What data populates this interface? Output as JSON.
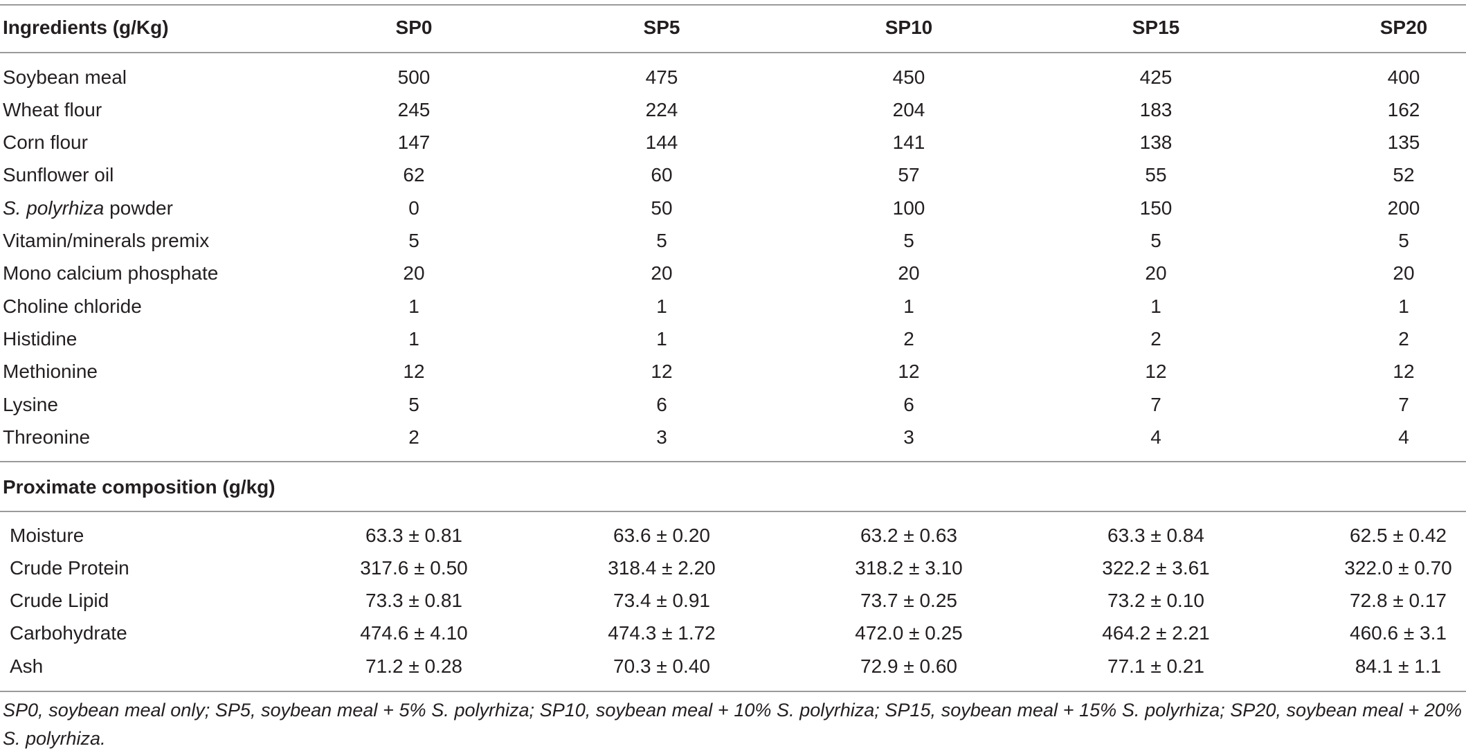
{
  "header": {
    "col0": "Ingredients (g/Kg)",
    "cols": [
      "SP0",
      "SP5",
      "SP10",
      "SP15",
      "SP20"
    ]
  },
  "ingredients": [
    {
      "name": "Soybean meal",
      "values": [
        "500",
        "475",
        "450",
        "425",
        "400"
      ]
    },
    {
      "name": "Wheat flour",
      "values": [
        "245",
        "224",
        "204",
        "183",
        "162"
      ]
    },
    {
      "name": "Corn flour",
      "values": [
        "147",
        "144",
        "141",
        "138",
        "135"
      ]
    },
    {
      "name": "Sunflower oil",
      "values": [
        "62",
        "60",
        "57",
        "55",
        "52"
      ]
    },
    {
      "name_italic": "S. polyrhiza",
      "name_rest": " powder",
      "values": [
        "0",
        "50",
        "100",
        "150",
        "200"
      ]
    },
    {
      "name": "Vitamin/minerals premix",
      "values": [
        "5",
        "5",
        "5",
        "5",
        "5"
      ]
    },
    {
      "name": "Mono calcium phosphate",
      "values": [
        "20",
        "20",
        "20",
        "20",
        "20"
      ]
    },
    {
      "name": "Choline chloride",
      "values": [
        "1",
        "1",
        "1",
        "1",
        "1"
      ]
    },
    {
      "name": "Histidine",
      "values": [
        "1",
        "1",
        "2",
        "2",
        "2"
      ]
    },
    {
      "name": "Methionine",
      "values": [
        "12",
        "12",
        "12",
        "12",
        "12"
      ]
    },
    {
      "name": "Lysine",
      "values": [
        "5",
        "6",
        "6",
        "7",
        "7"
      ]
    },
    {
      "name": "Threonine",
      "values": [
        "2",
        "3",
        "3",
        "4",
        "4"
      ]
    }
  ],
  "proximate": {
    "title": "Proximate composition (g/kg)",
    "rows": [
      {
        "name": "Moisture",
        "values": [
          "63.3 ± 0.81",
          "63.6 ± 0.20",
          "63.2 ± 0.63",
          "63.3 ± 0.84",
          "62.5 ± 0.42"
        ]
      },
      {
        "name": "Crude Protein",
        "values": [
          "317.6 ± 0.50",
          "318.4 ± 2.20",
          "318.2 ± 3.10",
          "322.2 ± 3.61",
          "322.0 ± 0.70"
        ]
      },
      {
        "name": "Crude Lipid",
        "values": [
          "73.3 ± 0.81",
          "73.4 ± 0.91",
          "73.7 ± 0.25",
          "73.2 ± 0.10",
          "72.8 ± 0.17"
        ]
      },
      {
        "name": "Carbohydrate",
        "values": [
          "474.6 ± 4.10",
          "474.3 ± 1.72",
          "472.0 ± 0.25",
          "464.2 ± 2.21",
          "460.6 ± 3.1"
        ]
      },
      {
        "name": "Ash",
        "values": [
          "71.2 ± 0.28",
          "70.3 ± 0.40",
          "72.9 ± 0.60",
          "77.1 ± 0.21",
          "84.1 ± 1.1"
        ]
      }
    ]
  },
  "footnote": "SP0, soybean meal only; SP5, soybean meal + 5% S. polyrhiza; SP10, soybean meal + 10% S. polyrhiza; SP15, soybean meal + 15% S. polyrhiza; SP20, soybean meal + 20% S. polyrhiza."
}
